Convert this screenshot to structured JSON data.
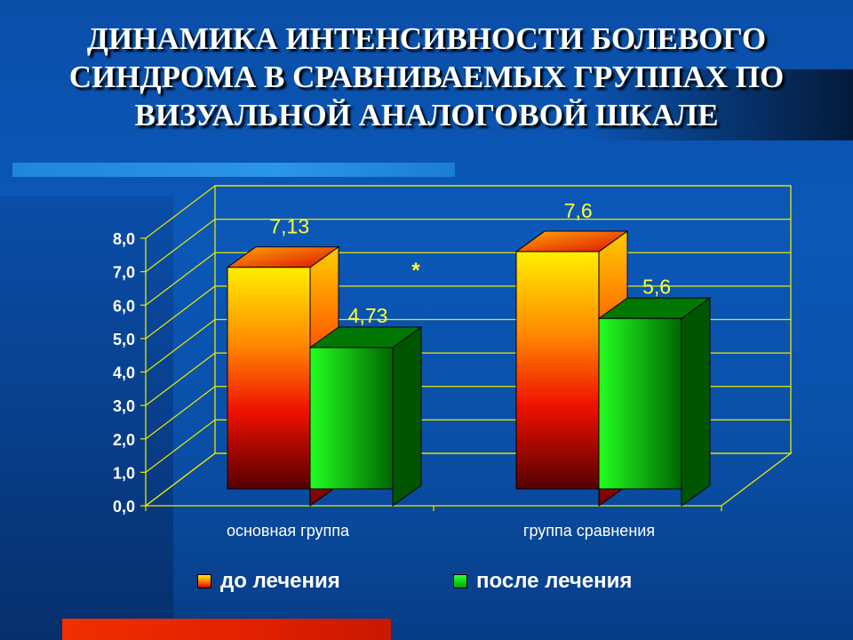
{
  "title": {
    "lines": [
      "ДИНАМИКА ИНТЕНСИВНОСТИ БОЛЕВОГО",
      "СИНДРОМА В СРАВНИВАЕМЫХ ГРУППАХ ПО",
      "ВИЗУАЛЬНОЙ  АНАЛОГОВОЙ  ШКАЛЕ"
    ]
  },
  "colors": {
    "before_top": "#ffee00",
    "before_bottom": "#550000",
    "after_light": "#22ff22",
    "after_dark": "#006600",
    "frame": "#e8e800",
    "value_label": "#ffff33"
  },
  "chart_data": {
    "type": "bar",
    "categories": [
      "основная группа",
      "группа сравнения"
    ],
    "series": [
      {
        "name": "до лечения",
        "values": [
          7.13,
          7.6
        ]
      },
      {
        "name": "после лечения",
        "values": [
          4.73,
          5.6
        ]
      }
    ],
    "value_labels": [
      [
        "7,13",
        "7,6"
      ],
      [
        "4,73",
        "5,6"
      ]
    ],
    "ylim": [
      0,
      8
    ],
    "yticks": [
      "0,0",
      "1,0",
      "2,0",
      "3,0",
      "4,0",
      "5,0",
      "6,0",
      "7,0",
      "8,0"
    ],
    "annotation": "*",
    "grid": true,
    "legend_position": "bottom",
    "three_d": true
  }
}
